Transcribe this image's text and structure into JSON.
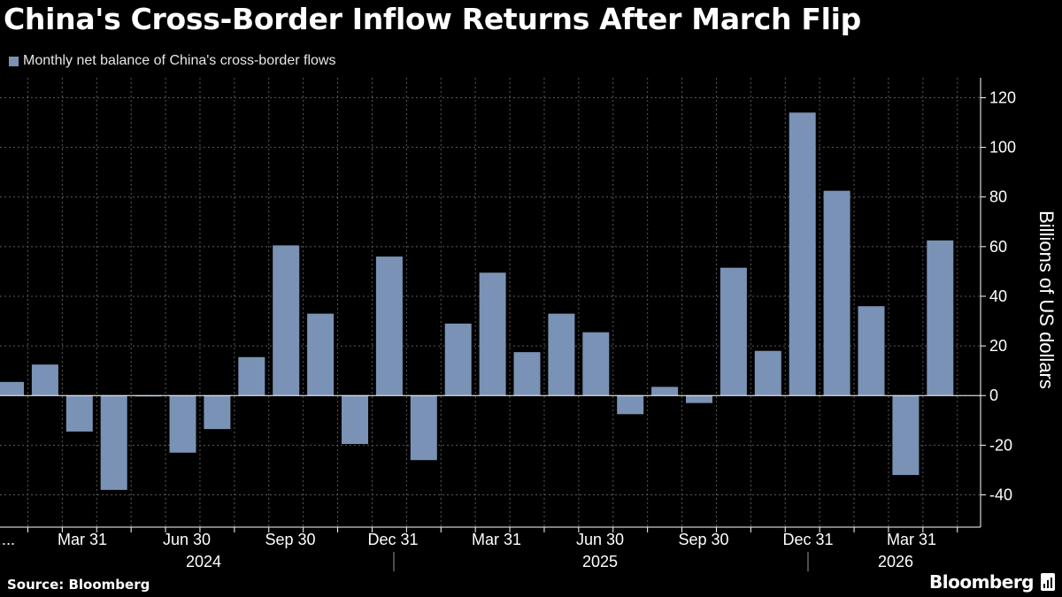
{
  "title": "China's Cross-Border Inflow Returns After March Flip",
  "source": "Source: Bloomberg",
  "brand": "Bloomberg",
  "colors": {
    "background": "#000000",
    "bar": "#7a92b5",
    "grid": "#5a5a5a",
    "text": "#ffffff"
  },
  "chart_data": {
    "type": "bar",
    "legend": "Monthly net balance of China's cross-border flows",
    "legend_position": "top-left",
    "ylabel": "Billions of US dollars",
    "ylim": [
      -53,
      128
    ],
    "yticks": [
      120,
      100,
      80,
      60,
      40,
      20,
      0,
      -20,
      -40
    ],
    "grid": true,
    "x_tick_labels": [
      "...",
      "Mar 31",
      "Jun 30",
      "Sep 30",
      "Dec 31",
      "Mar 31",
      "Jun 30",
      "Sep 30",
      "Dec 31",
      "Mar 31"
    ],
    "year_labels": [
      "2024",
      "2025",
      "2026"
    ],
    "series": [
      {
        "name": "Monthly net balance of China's cross-border flows",
        "values": [
          5.5,
          12.5,
          -14.5,
          -38,
          -0.3,
          -23,
          -13.5,
          15.5,
          60.5,
          33,
          -19.5,
          56,
          -26,
          29,
          49.5,
          17.5,
          33,
          25.5,
          -7.5,
          3.5,
          -3,
          51.5,
          18,
          114,
          82.5,
          36,
          -32,
          62.5
        ]
      }
    ]
  }
}
